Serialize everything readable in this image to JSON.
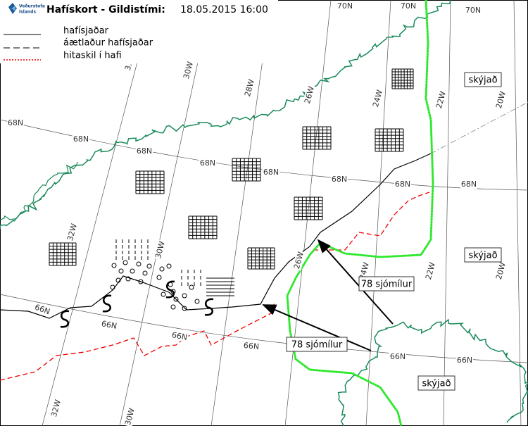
{
  "header": {
    "title": "Hafískort - Gildistími:",
    "valid_time": "18.05.2015 16:00",
    "logo_line1": "Veðurstofa",
    "logo_line2": "Íslands"
  },
  "legend": [
    {
      "label": "hafísjaðar"
    },
    {
      "label": "áætlaður hafísjaðar"
    },
    {
      "label": "hitaskil í hafi"
    }
  ],
  "grid_labels": [
    "70N",
    "70N",
    "70N",
    "3.",
    "30W",
    "28W",
    "26W",
    "24W",
    "22W",
    "20W",
    "68N",
    "68N",
    "68N",
    "68N",
    "68N",
    "68N",
    "68N",
    "68N",
    "32W",
    "30W",
    "26W",
    "24W",
    "22W",
    "20W",
    "66N",
    "66N",
    "66N",
    "66N",
    "66N",
    "66N",
    "32W",
    "30W"
  ],
  "annotations": [
    {
      "text": "skýjað"
    },
    {
      "text": "skýjað"
    },
    {
      "text": "skýjað"
    },
    {
      "text": "78 sjómílur"
    },
    {
      "text": "78 sjómílur"
    }
  ]
}
